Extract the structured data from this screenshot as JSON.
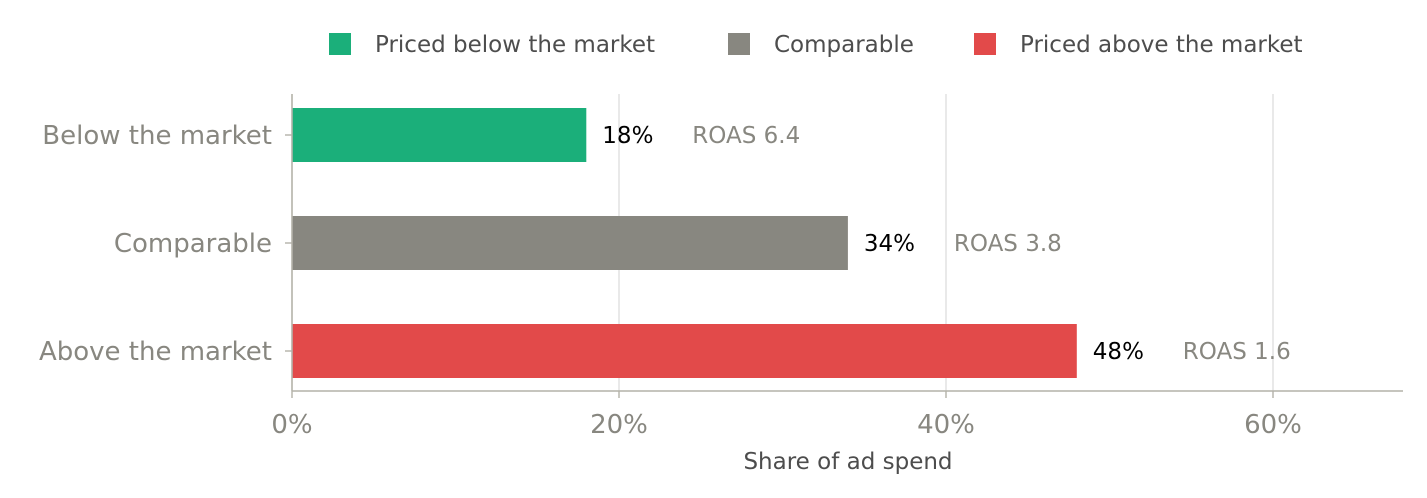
{
  "chart_data": {
    "type": "bar",
    "orientation": "horizontal",
    "categories": [
      "Below the market",
      "Comparable",
      "Above the market"
    ],
    "values": [
      18,
      34,
      48
    ],
    "value_labels": [
      "18%",
      "34%",
      "48%"
    ],
    "annotations": [
      "ROAS 6.4",
      "ROAS 3.8",
      "ROAS 1.6"
    ],
    "colors": [
      "#1baf7a",
      "#888780",
      "#e24a4a"
    ],
    "legend": {
      "placement": "top",
      "entries": [
        {
          "label": "Priced below the market",
          "color": "#1baf7a"
        },
        {
          "label": "Comparable",
          "color": "#888780"
        },
        {
          "label": "Priced above the market",
          "color": "#e24a4a"
        }
      ]
    },
    "xlabel": "Share of ad spend",
    "ylabel": "",
    "title": "",
    "xlim": [
      0,
      68
    ],
    "xticks": [
      0,
      20,
      40,
      60
    ],
    "xtick_labels": [
      "0%",
      "20%",
      "40%",
      "60%"
    ],
    "grid": "vertical"
  }
}
